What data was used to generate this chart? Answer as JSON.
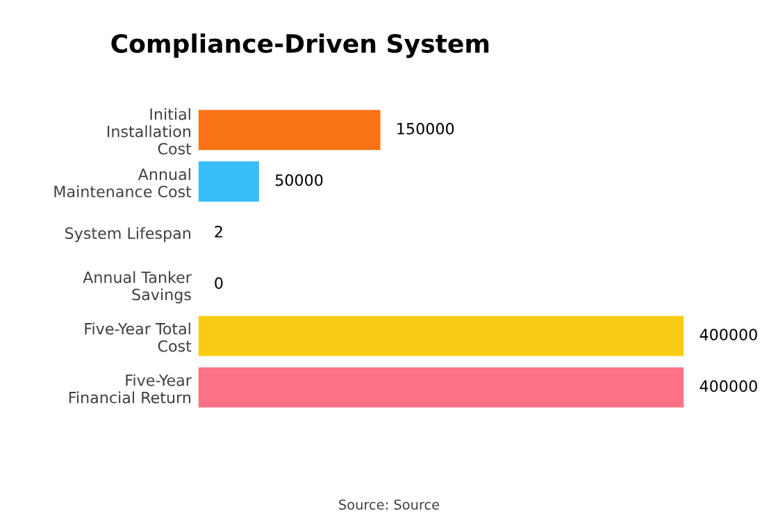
{
  "chart_data": {
    "type": "bar",
    "orientation": "horizontal",
    "title": "Compliance-Driven System",
    "categories": [
      "Initial\nInstallation\nCost",
      "Annual\nMaintenance Cost",
      "System Lifespan",
      "Annual Tanker\nSavings",
      "Five-Year Total\nCost",
      "Five-Year\nFinancial Return"
    ],
    "values": [
      150000,
      50000,
      2,
      0,
      400000,
      400000
    ],
    "colors": [
      "#f97316",
      "#38bdf8",
      "#a3a3a3",
      "#a3a3a3",
      "#facc15",
      "#fb7185"
    ],
    "data_labels": true,
    "grid": false,
    "annotations": [
      "Source: Source"
    ]
  }
}
